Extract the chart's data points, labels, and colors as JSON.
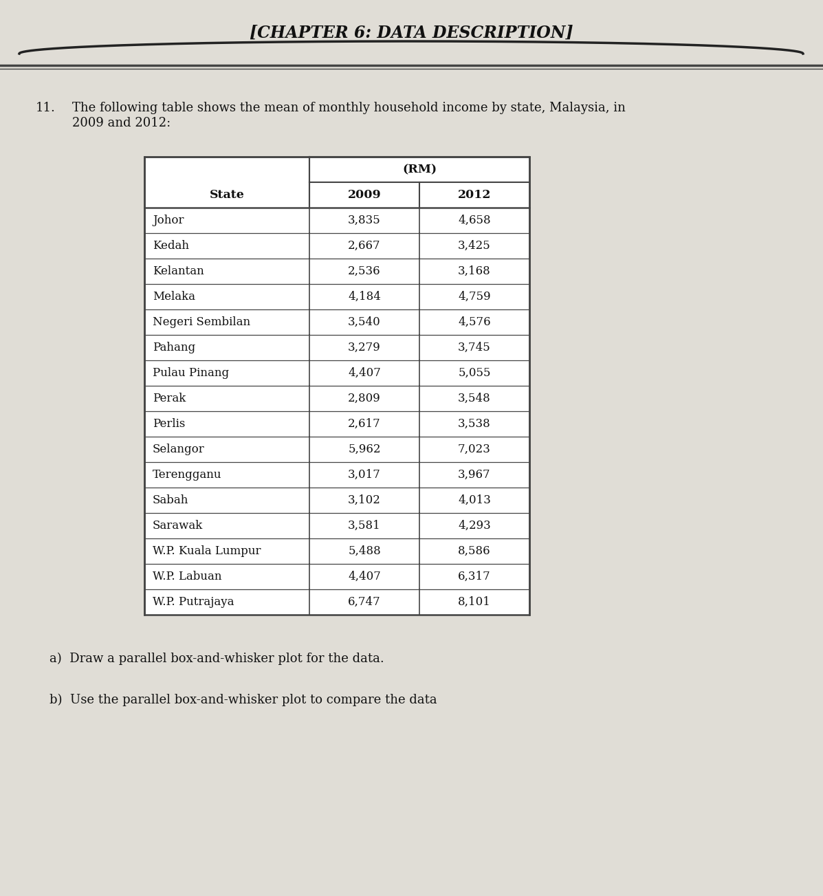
{
  "chapter_title": "[CHAPTER 6: DATA DESCRIPTION]",
  "question_number": "11.",
  "question_text": "The following table shows the mean of monthly household income by state, Malaysia, in\n2009 and 2012:",
  "table_header_unit": "(RM)",
  "table_columns": [
    "State",
    "2009",
    "2012"
  ],
  "table_data": [
    [
      "Johor",
      "3,835",
      "4,658"
    ],
    [
      "Kedah",
      "2,667",
      "3,425"
    ],
    [
      "Kelantan",
      "2,536",
      "3,168"
    ],
    [
      "Melaka",
      "4,184",
      "4,759"
    ],
    [
      "Negeri Sembilan",
      "3,540",
      "4,576"
    ],
    [
      "Pahang",
      "3,279",
      "3,745"
    ],
    [
      "Pulau Pinang",
      "4,407",
      "5,055"
    ],
    [
      "Perak",
      "2,809",
      "3,548"
    ],
    [
      "Perlis",
      "2,617",
      "3,538"
    ],
    [
      "Selangor",
      "5,962",
      "7,023"
    ],
    [
      "Terengganu",
      "3,017",
      "3,967"
    ],
    [
      "Sabah",
      "3,102",
      "4,013"
    ],
    [
      "Sarawak",
      "3,581",
      "4,293"
    ],
    [
      "W.P. Kuala Lumpur",
      "5,488",
      "8,586"
    ],
    [
      "W.P. Labuan",
      "4,407",
      "6,317"
    ],
    [
      "W.P. Putrajaya",
      "6,747",
      "8,101"
    ]
  ],
  "sub_questions_a": "a)  Draw a parallel box-and-whisker plot for the data.",
  "sub_questions_b": "b)  Use the parallel box-and-whisker plot to compare the data",
  "bg_color": "#e0ddd6",
  "text_color": "#111111",
  "table_line_color": "#444444",
  "title_fontsize": 17,
  "question_fontsize": 13,
  "table_fontsize": 12.5,
  "sub_q_fontsize": 13,
  "header_arc_color": "#222222"
}
